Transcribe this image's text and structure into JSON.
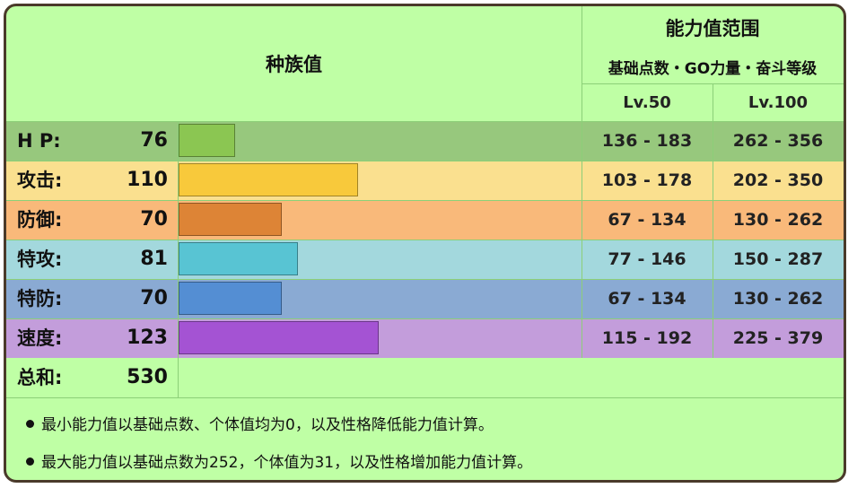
{
  "header": {
    "main_title": "种族值",
    "range_title": "能力值范围",
    "range_subtitle": "基础点数・GO力量・奋斗等级",
    "lv50": "Lv.50",
    "lv100": "Lv.100"
  },
  "stats": [
    {
      "name": "H P:",
      "value": "76",
      "fraction": 0.1411,
      "lv50": "136 - 183",
      "lv100": "262 - 356",
      "row_color": "#97c87d",
      "bar_color": "#8bc652"
    },
    {
      "name": "攻击:",
      "value": "110",
      "fraction": 0.4459,
      "lv50": "103 - 178",
      "lv100": "202 - 350",
      "row_color": "#fae08f",
      "bar_color": "#f8c93b"
    },
    {
      "name": "防御:",
      "value": "70",
      "fraction": 0.2567,
      "lv50": "67 - 134",
      "lv100": "130 - 262",
      "row_color": "#f9b97a",
      "bar_color": "#dd8436"
    },
    {
      "name": "特攻:",
      "value": "81",
      "fraction": 0.2972,
      "lv50": "77 - 146",
      "lv100": "150 - 287",
      "row_color": "#a3d8dd",
      "bar_color": "#58c4d3"
    },
    {
      "name": "特防:",
      "value": "70",
      "fraction": 0.2567,
      "lv50": "67 - 134",
      "lv100": "130 - 262",
      "row_color": "#8aaad3",
      "bar_color": "#548ed3"
    },
    {
      "name": "速度:",
      "value": "123",
      "fraction": 0.4986,
      "lv50": "115 - 192",
      "lv100": "225 - 379",
      "row_color": "#c39ddb",
      "bar_color": "#a453d3"
    }
  ],
  "total": {
    "name": "总和:",
    "value": "530"
  },
  "notes": [
    "最小能力值以基础点数、个体值均为0，以及性格降低能力值计算。",
    "最大能力值以基础点数为252，个体值为31，以及性格增加能力值计算。"
  ]
}
